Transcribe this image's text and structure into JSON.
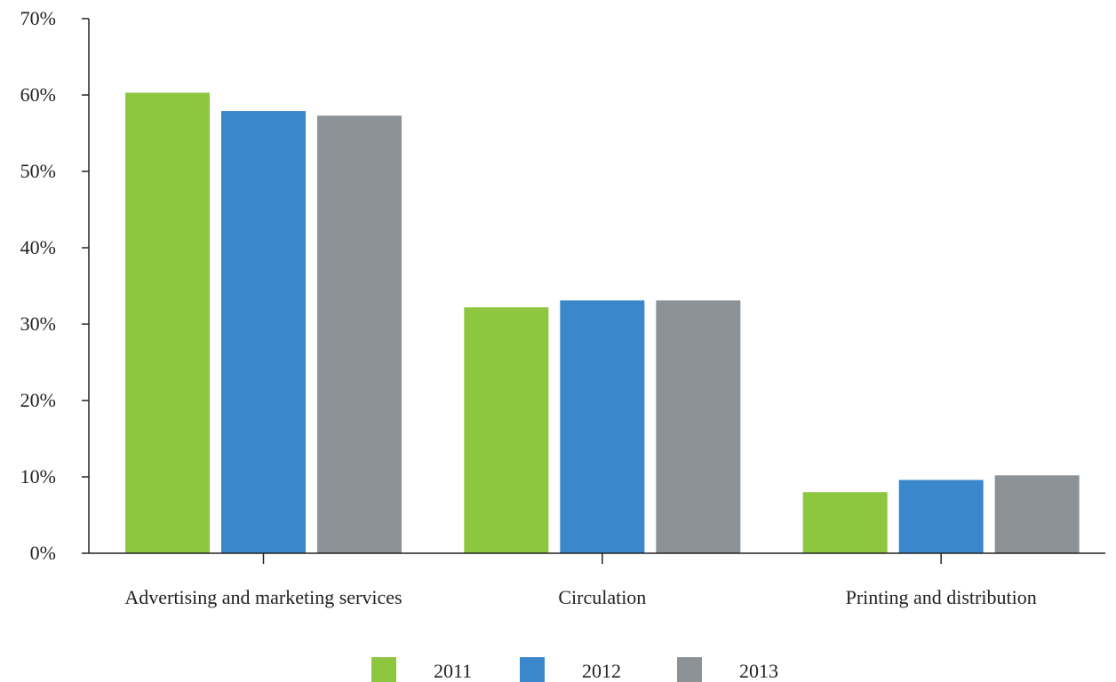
{
  "chart_data": {
    "type": "bar",
    "title": "",
    "xlabel": "",
    "ylabel": "",
    "categories": [
      "Advertising and marketing services",
      "Circulation",
      "Printing and distribution"
    ],
    "series": [
      {
        "name": "2011",
        "color": "#8dc63f",
        "values": [
          60.3,
          32.2,
          8.0
        ]
      },
      {
        "name": "2012",
        "color": "#3b87cc",
        "values": [
          57.9,
          33.1,
          9.6
        ]
      },
      {
        "name": "2013",
        "color": "#8d9297",
        "values": [
          57.3,
          33.1,
          10.2
        ]
      }
    ],
    "ylim": [
      0,
      70
    ],
    "yticks": [
      "0%",
      "10%",
      "20%",
      "30%",
      "40%",
      "50%",
      "60%",
      "70%"
    ],
    "grid": false,
    "legend_position": "bottom-center"
  }
}
